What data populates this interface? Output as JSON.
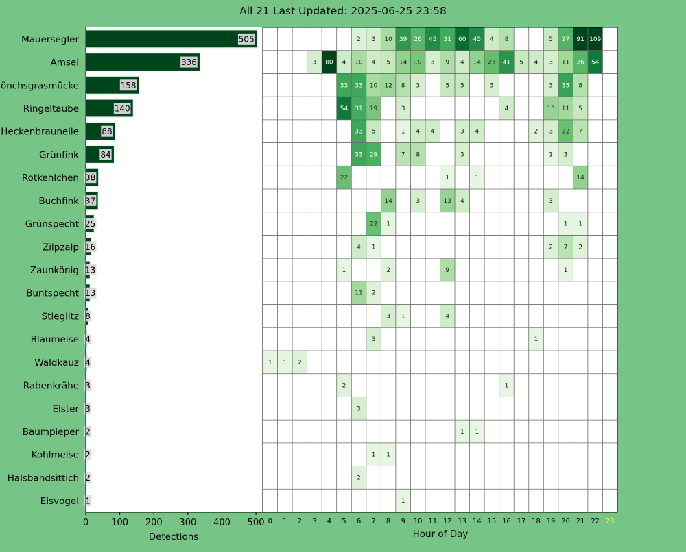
{
  "chart_data": {
    "type": "bar+heatmap",
    "title": "All 21 Last Updated: 2025-06-25 23:58",
    "bar": {
      "orientation": "horizontal",
      "xlabel": "Detections",
      "xlim": [
        0,
        520
      ],
      "xticks": [
        0,
        100,
        200,
        300,
        400,
        500
      ],
      "categories": [
        "Mauersegler",
        "Amsel",
        "Mönchsgrasmücke",
        "Ringeltaube",
        "Heckenbraunelle",
        "Grünfink",
        "Rotkehlchen",
        "Buchfink",
        "Grünspecht",
        "Zilpzalp",
        "Zaunkönig",
        "Buntspecht",
        "Stieglitz",
        "Blaumeise",
        "Waldkauz",
        "Rabenkrähe",
        "Elster",
        "Baumpieper",
        "Kohlmeise",
        "Halsbandsittich",
        "Eisvogel"
      ],
      "values": [
        505,
        336,
        158,
        140,
        88,
        84,
        38,
        37,
        25,
        16,
        13,
        13,
        8,
        4,
        4,
        3,
        3,
        2,
        2,
        2,
        1
      ],
      "bar_color": "#00441b"
    },
    "heatmap": {
      "xlabel": "Hour of Day",
      "hours": [
        "0",
        "1",
        "2",
        "3",
        "4",
        "5",
        "6",
        "7",
        "8",
        "9",
        "10",
        "11",
        "12",
        "13",
        "14",
        "15",
        "16",
        "17",
        "18",
        "19",
        "20",
        "21",
        "22",
        "23"
      ],
      "current_hour": "23",
      "colormap": "Greens",
      "vmax": 80,
      "rows": [
        [
          null,
          null,
          null,
          null,
          null,
          null,
          2,
          3,
          10,
          39,
          26,
          45,
          31,
          60,
          45,
          4,
          8,
          null,
          null,
          5,
          27,
          91,
          109,
          null
        ],
        [
          null,
          null,
          null,
          3,
          80,
          4,
          10,
          4,
          5,
          14,
          19,
          3,
          9,
          4,
          14,
          23,
          41,
          5,
          4,
          3,
          11,
          26,
          54,
          null
        ],
        [
          null,
          null,
          null,
          null,
          null,
          33,
          33,
          10,
          12,
          8,
          3,
          null,
          5,
          5,
          null,
          3,
          null,
          null,
          null,
          3,
          35,
          8,
          null,
          null
        ],
        [
          null,
          null,
          null,
          null,
          null,
          54,
          31,
          19,
          null,
          3,
          null,
          null,
          null,
          null,
          null,
          null,
          4,
          null,
          null,
          13,
          11,
          5,
          null,
          null
        ],
        [
          null,
          null,
          null,
          null,
          null,
          null,
          33,
          5,
          null,
          1,
          4,
          4,
          null,
          3,
          4,
          null,
          null,
          null,
          2,
          3,
          22,
          7,
          null,
          null
        ],
        [
          null,
          null,
          null,
          null,
          null,
          null,
          33,
          29,
          null,
          7,
          8,
          null,
          null,
          3,
          null,
          null,
          null,
          null,
          null,
          1,
          3,
          null,
          null,
          null
        ],
        [
          null,
          null,
          null,
          null,
          null,
          22,
          null,
          null,
          null,
          null,
          null,
          null,
          1,
          null,
          1,
          null,
          null,
          null,
          null,
          null,
          null,
          14,
          null,
          null
        ],
        [
          null,
          null,
          null,
          null,
          null,
          null,
          null,
          null,
          14,
          null,
          3,
          null,
          13,
          4,
          null,
          null,
          null,
          null,
          null,
          3,
          null,
          null,
          null,
          null
        ],
        [
          null,
          null,
          null,
          null,
          null,
          null,
          null,
          22,
          1,
          null,
          null,
          null,
          null,
          null,
          null,
          null,
          null,
          null,
          null,
          null,
          1,
          1,
          null,
          null
        ],
        [
          null,
          null,
          null,
          null,
          null,
          null,
          4,
          1,
          null,
          null,
          null,
          null,
          null,
          null,
          null,
          null,
          null,
          null,
          null,
          2,
          7,
          2,
          null,
          null
        ],
        [
          null,
          null,
          null,
          null,
          null,
          1,
          null,
          null,
          2,
          null,
          null,
          null,
          9,
          null,
          null,
          null,
          null,
          null,
          null,
          null,
          1,
          null,
          null,
          null
        ],
        [
          null,
          null,
          null,
          null,
          null,
          null,
          11,
          2,
          null,
          null,
          null,
          null,
          null,
          null,
          null,
          null,
          null,
          null,
          null,
          null,
          null,
          null,
          null,
          null
        ],
        [
          null,
          null,
          null,
          null,
          null,
          null,
          null,
          null,
          3,
          1,
          null,
          null,
          4,
          null,
          null,
          null,
          null,
          null,
          null,
          null,
          null,
          null,
          null,
          null
        ],
        [
          null,
          null,
          null,
          null,
          null,
          null,
          null,
          3,
          null,
          null,
          null,
          null,
          null,
          null,
          null,
          null,
          null,
          null,
          1,
          null,
          null,
          null,
          null,
          null
        ],
        [
          1,
          1,
          2,
          null,
          null,
          null,
          null,
          null,
          null,
          null,
          null,
          null,
          null,
          null,
          null,
          null,
          null,
          null,
          null,
          null,
          null,
          null,
          null,
          null
        ],
        [
          null,
          null,
          null,
          null,
          null,
          2,
          null,
          null,
          null,
          null,
          null,
          null,
          null,
          null,
          null,
          null,
          1,
          null,
          null,
          null,
          null,
          null,
          null,
          null
        ],
        [
          null,
          null,
          null,
          null,
          null,
          null,
          3,
          null,
          null,
          null,
          null,
          null,
          null,
          null,
          null,
          null,
          null,
          null,
          null,
          null,
          null,
          null,
          null,
          null
        ],
        [
          null,
          null,
          null,
          null,
          null,
          null,
          null,
          null,
          null,
          null,
          null,
          null,
          null,
          1,
          1,
          null,
          null,
          null,
          null,
          null,
          null,
          null,
          null,
          null
        ],
        [
          null,
          null,
          null,
          null,
          null,
          null,
          null,
          1,
          1,
          null,
          null,
          null,
          null,
          null,
          null,
          null,
          null,
          null,
          null,
          null,
          null,
          null,
          null,
          null
        ],
        [
          null,
          null,
          null,
          null,
          null,
          null,
          2,
          null,
          null,
          null,
          null,
          null,
          null,
          null,
          null,
          null,
          null,
          null,
          null,
          null,
          null,
          null,
          null,
          null
        ],
        [
          null,
          null,
          null,
          null,
          null,
          null,
          null,
          null,
          null,
          1,
          null,
          null,
          null,
          null,
          null,
          null,
          null,
          null,
          null,
          null,
          null,
          null,
          null,
          null
        ]
      ]
    }
  }
}
